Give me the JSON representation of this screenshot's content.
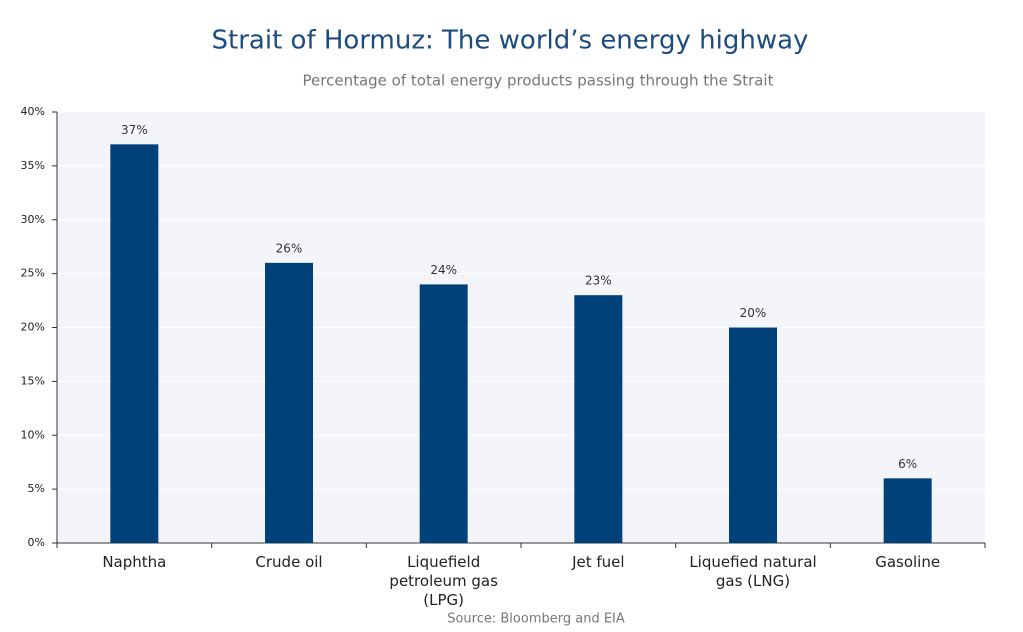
{
  "chart_data": {
    "type": "bar",
    "title": "Strait of Hormuz: The world’s energy highway",
    "subtitle": "Percentage of total energy products passing through the Strait",
    "source": "Source: Bloomberg and EIA",
    "categories": [
      "Naphtha",
      "Crude oil",
      "Liquefield petroleum gas (LPG)",
      "Jet fuel",
      "Liquefied natural gas (LNG)",
      "Gasoline"
    ],
    "values": [
      37,
      26,
      24,
      23,
      20,
      6
    ],
    "value_labels": [
      "37%",
      "26%",
      "24%",
      "23%",
      "20%",
      "6%"
    ],
    "color": "#00417a",
    "ylim": [
      0,
      40
    ],
    "yticks": [
      {
        "value": 0,
        "label": "0%"
      },
      {
        "value": 5,
        "label": "5%"
      },
      {
        "value": 10,
        "label": "10%"
      },
      {
        "value": 15,
        "label": "15%"
      },
      {
        "value": 20,
        "label": "20%"
      },
      {
        "value": 25,
        "label": "25%"
      },
      {
        "value": 30,
        "label": "30%"
      },
      {
        "value": 35,
        "label": "35%"
      },
      {
        "value": 40,
        "label": "40%"
      }
    ],
    "grid": true
  }
}
